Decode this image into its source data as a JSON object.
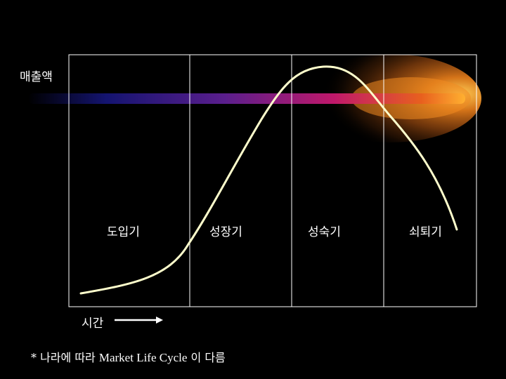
{
  "diagram": {
    "y_axis_label": "매출액",
    "x_axis_label": "시간",
    "stages": [
      {
        "label": "도입기"
      },
      {
        "label": "성장기"
      },
      {
        "label": "성숙기"
      },
      {
        "label": "쇠퇴기"
      }
    ],
    "note": {
      "prefix": "* 나라에 따라 ",
      "middle": "Market Life Cycle",
      "suffix": " 이 다름"
    },
    "colors": {
      "background": "#000000",
      "frame": "#ffffff",
      "curve": "#ffffcc",
      "band_start": "#1a1a8c",
      "band_mid": "#c0186a",
      "band_end": "#ff9a1a"
    }
  }
}
